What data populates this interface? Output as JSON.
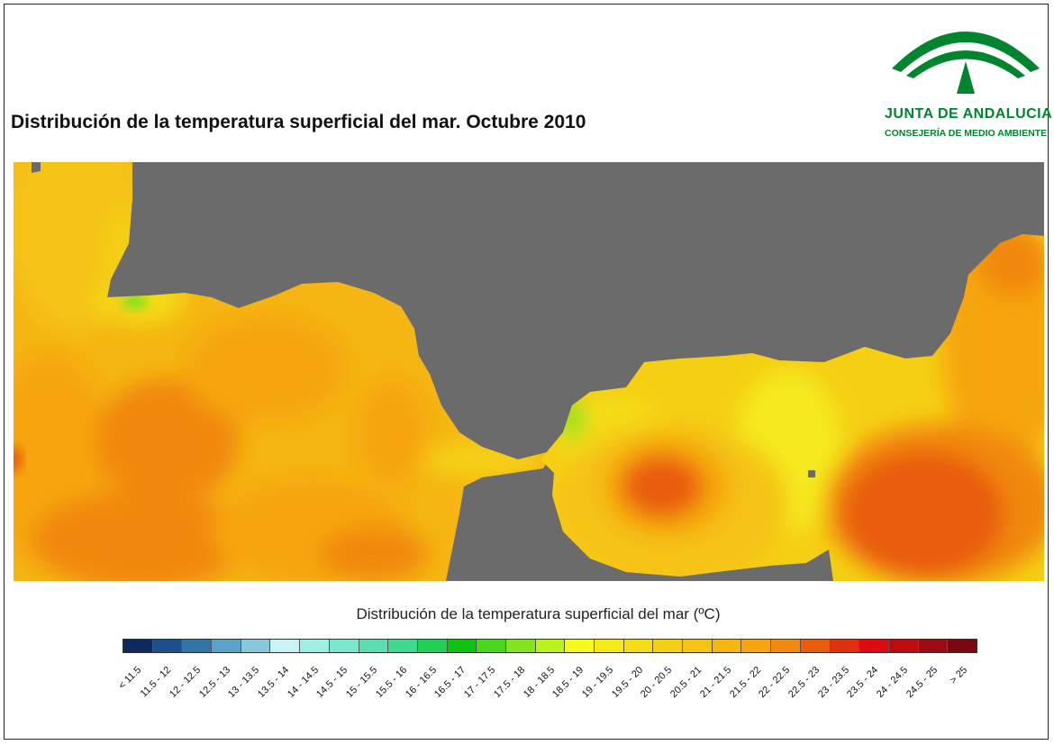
{
  "title": "Distribución de la temperatura superficial del mar. Octubre 2010",
  "logo": {
    "name": "JUNTA DE ANDALUCIA",
    "subtitle": "CONSEJERÍA DE MEDIO AMBIENTE",
    "color": "#00852f"
  },
  "map": {
    "land_color": "#6b6b6b",
    "data_units": "°C",
    "dominant_classes": [
      "20.5 - 21",
      "21 - 21.5",
      "21.5 - 22",
      "22 - 22.5",
      "22.5 - 23"
    ]
  },
  "legend": {
    "title": "Distribución de la temperatura superficial del mar (ºC)",
    "classes": [
      {
        "label": "< 11.5",
        "color": "#0d2a5f"
      },
      {
        "label": "11.5 - 12",
        "color": "#1d4f8c"
      },
      {
        "label": "12 - 12.5",
        "color": "#3475a8"
      },
      {
        "label": "12.5 - 13",
        "color": "#5aa2c7"
      },
      {
        "label": "13 - 13.5",
        "color": "#89c8dc"
      },
      {
        "label": "13.5 - 14",
        "color": "#c5f3f6"
      },
      {
        "label": "14 - 14.5",
        "color": "#9eefe2"
      },
      {
        "label": "14.5 - 15",
        "color": "#7ae6cc"
      },
      {
        "label": "15 - 15.5",
        "color": "#5ddcb0"
      },
      {
        "label": "15.5 - 16",
        "color": "#3ed88e"
      },
      {
        "label": "16 - 16.5",
        "color": "#22cd55"
      },
      {
        "label": "16.5 - 17",
        "color": "#0fc20f"
      },
      {
        "label": "17 - 17.5",
        "color": "#49d61c"
      },
      {
        "label": "17.5 - 18",
        "color": "#82e321"
      },
      {
        "label": "18 - 18.5",
        "color": "#baf21c"
      },
      {
        "label": "18.5 - 19",
        "color": "#f6fa1a"
      },
      {
        "label": "19 - 19.5",
        "color": "#f5e91a"
      },
      {
        "label": "19.5 - 20",
        "color": "#f4dc17"
      },
      {
        "label": "20 - 20.5",
        "color": "#f5cf14"
      },
      {
        "label": "20.5 - 21",
        "color": "#f5c313"
      },
      {
        "label": "21 - 21.5",
        "color": "#f5b512"
      },
      {
        "label": "21.5 - 22",
        "color": "#f6a511"
      },
      {
        "label": "22 - 22.5",
        "color": "#f1880f"
      },
      {
        "label": "22.5 - 23",
        "color": "#e95c0c"
      },
      {
        "label": "23 - 23.5",
        "color": "#e1300f"
      },
      {
        "label": "23.5 - 24",
        "color": "#dd0b10"
      },
      {
        "label": "24 - 24.5",
        "color": "#bf0a12"
      },
      {
        "label": "24.5 - 25",
        "color": "#9c0a12"
      },
      {
        "label": "> 25",
        "color": "#7a0810"
      }
    ]
  }
}
